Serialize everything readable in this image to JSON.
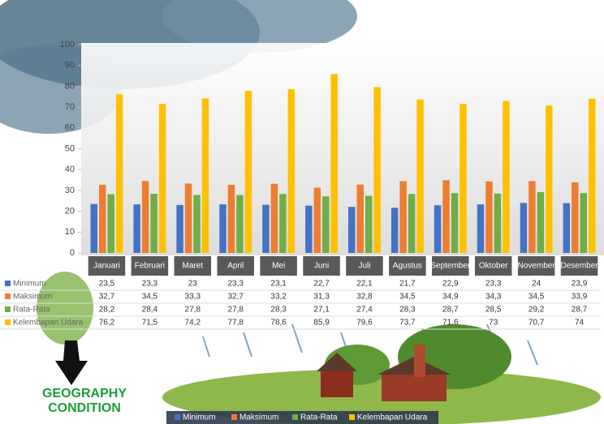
{
  "chart_data": {
    "type": "bar",
    "categories": [
      "Januari",
      "Februari",
      "Maret",
      "April",
      "Mei",
      "Juni",
      "Juli",
      "Agustus",
      "September",
      "Oktober",
      "November",
      "Desember"
    ],
    "series": [
      {
        "name": "Minimum",
        "color": "#4472c4",
        "values": [
          23.5,
          23.3,
          23,
          23.3,
          23.1,
          22.7,
          22.1,
          21.7,
          22.9,
          23.3,
          24,
          23.9
        ],
        "value_labels": [
          "23,5",
          "23,3",
          "23",
          "23,3",
          "23,1",
          "22,7",
          "22,1",
          "21,7",
          "22,9",
          "23,3",
          "24",
          "23,9"
        ]
      },
      {
        "name": "Maksimum",
        "color": "#ed7d31",
        "values": [
          32.7,
          34.5,
          33.3,
          32.7,
          33.2,
          31.3,
          32.8,
          34.5,
          34.9,
          34.3,
          34.5,
          33.9
        ],
        "value_labels": [
          "32,7",
          "34,5",
          "33,3",
          "32,7",
          "33,2",
          "31,3",
          "32,8",
          "34,5",
          "34,9",
          "34,3",
          "34,5",
          "33,9"
        ]
      },
      {
        "name": "Rata-Rata",
        "color": "#70ad47",
        "values": [
          28.2,
          28.4,
          27.8,
          27.8,
          28.3,
          27.1,
          27.4,
          28.3,
          28.7,
          28.5,
          29.2,
          28.7
        ],
        "value_labels": [
          "28,2",
          "28,4",
          "27,8",
          "27,8",
          "28,3",
          "27,1",
          "27,4",
          "28,3",
          "28,7",
          "28,5",
          "29,2",
          "28,7"
        ]
      },
      {
        "name": "Kelembapan Udara",
        "color": "#ffc000",
        "values": [
          76.2,
          71.5,
          74.2,
          77.8,
          78.6,
          85.9,
          79.6,
          73.7,
          71.6,
          73,
          70.7,
          74
        ],
        "value_labels": [
          "76,2",
          "71,5",
          "74,2",
          "77,8",
          "78,6",
          "85,9",
          "79,6",
          "73,7",
          "71,6",
          "73",
          "70,7",
          "74"
        ]
      }
    ],
    "ylim": [
      0,
      100
    ],
    "yticks": [
      0,
      10,
      20,
      30,
      40,
      50,
      60,
      70,
      80,
      90,
      100
    ],
    "grid": false,
    "legend": "bottom"
  },
  "caption": [
    "GEOGRAPHY",
    "CONDITION"
  ]
}
